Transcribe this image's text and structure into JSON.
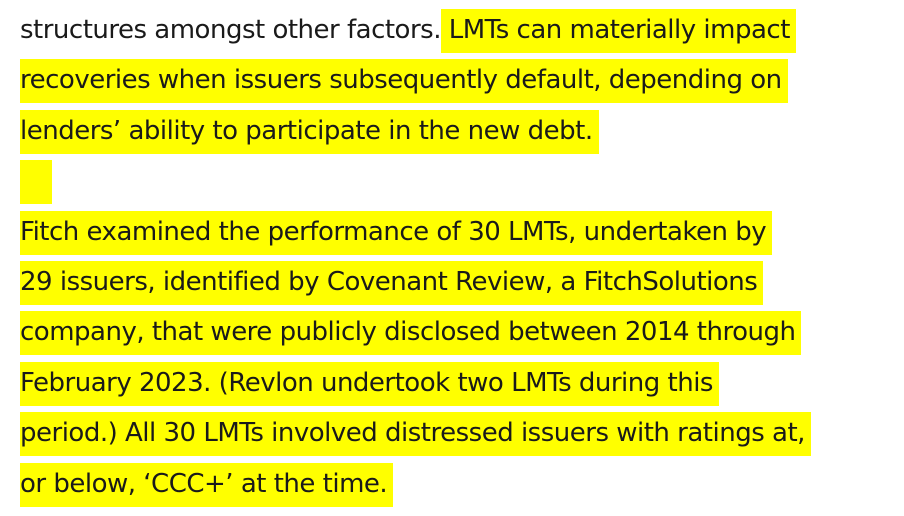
{
  "paragraph1": {
    "lines": [
      {
        "plain": "structures amongst other factors.",
        "highlight": " LMTs can materially impact"
      },
      {
        "highlight": "recoveries when issuers subsequently default, depending on"
      },
      {
        "highlight": "lenders’ ability to participate in the new debt."
      }
    ]
  },
  "paragraph2": {
    "lines": [
      {
        "highlight": "Fitch examined the performance of 30 LMTs, undertaken by"
      },
      {
        "highlight": "29 issuers, identified by Covenant Review, a FitchSolutions"
      },
      {
        "highlight": "company, that were publicly disclosed between 2014 through"
      },
      {
        "highlight": "February 2023. (Revlon undertook two LMTs during this"
      },
      {
        "highlight": "period.) All 30 LMTs involved distressed issuers with ratings at,"
      },
      {
        "highlight": "or below, ‘CCC+’ at the time."
      }
    ]
  },
  "colors": {
    "highlight": "#ffff00",
    "text": "#1a1a1a"
  }
}
